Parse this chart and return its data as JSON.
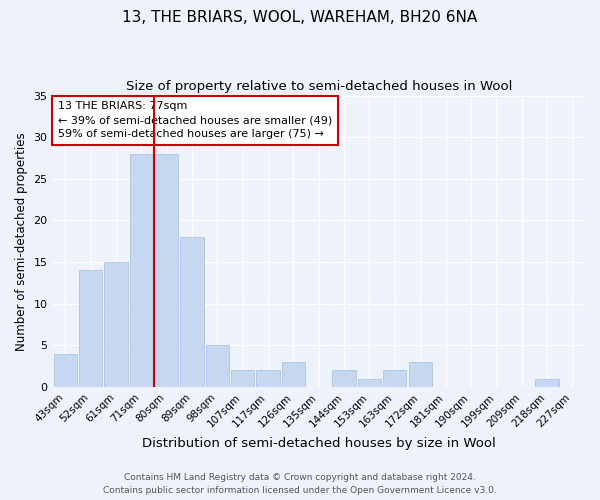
{
  "title": "13, THE BRIARS, WOOL, WAREHAM, BH20 6NA",
  "subtitle": "Size of property relative to semi-detached houses in Wool",
  "xlabel": "Distribution of semi-detached houses by size in Wool",
  "ylabel": "Number of semi-detached properties",
  "categories": [
    "43sqm",
    "52sqm",
    "61sqm",
    "71sqm",
    "80sqm",
    "89sqm",
    "98sqm",
    "107sqm",
    "117sqm",
    "126sqm",
    "135sqm",
    "144sqm",
    "153sqm",
    "163sqm",
    "172sqm",
    "181sqm",
    "190sqm",
    "199sqm",
    "209sqm",
    "218sqm",
    "227sqm"
  ],
  "values": [
    4,
    14,
    15,
    28,
    28,
    18,
    5,
    2,
    2,
    3,
    0,
    2,
    1,
    2,
    3,
    0,
    0,
    0,
    0,
    1,
    0
  ],
  "bar_color": "#c5d8f0",
  "bar_edge_color": "#aec6e8",
  "vline_x_index": 3.5,
  "vline_color": "#cc0000",
  "annotation_title": "13 THE BRIARS: 77sqm",
  "annotation_line1": "← 39% of semi-detached houses are smaller (49)",
  "annotation_line2": "59% of semi-detached houses are larger (75) →",
  "annotation_box_color": "#cc0000",
  "ylim": [
    0,
    35
  ],
  "yticks": [
    0,
    5,
    10,
    15,
    20,
    25,
    30,
    35
  ],
  "footnote1": "Contains HM Land Registry data © Crown copyright and database right 2024.",
  "footnote2": "Contains public sector information licensed under the Open Government Licence v3.0.",
  "background_color": "#eef2fa",
  "grid_color": "#ffffff",
  "title_fontsize": 11,
  "subtitle_fontsize": 9.5,
  "xlabel_fontsize": 9.5,
  "ylabel_fontsize": 8.5,
  "tick_fontsize": 7.5,
  "annotation_fontsize": 8,
  "footnote_fontsize": 6.5
}
